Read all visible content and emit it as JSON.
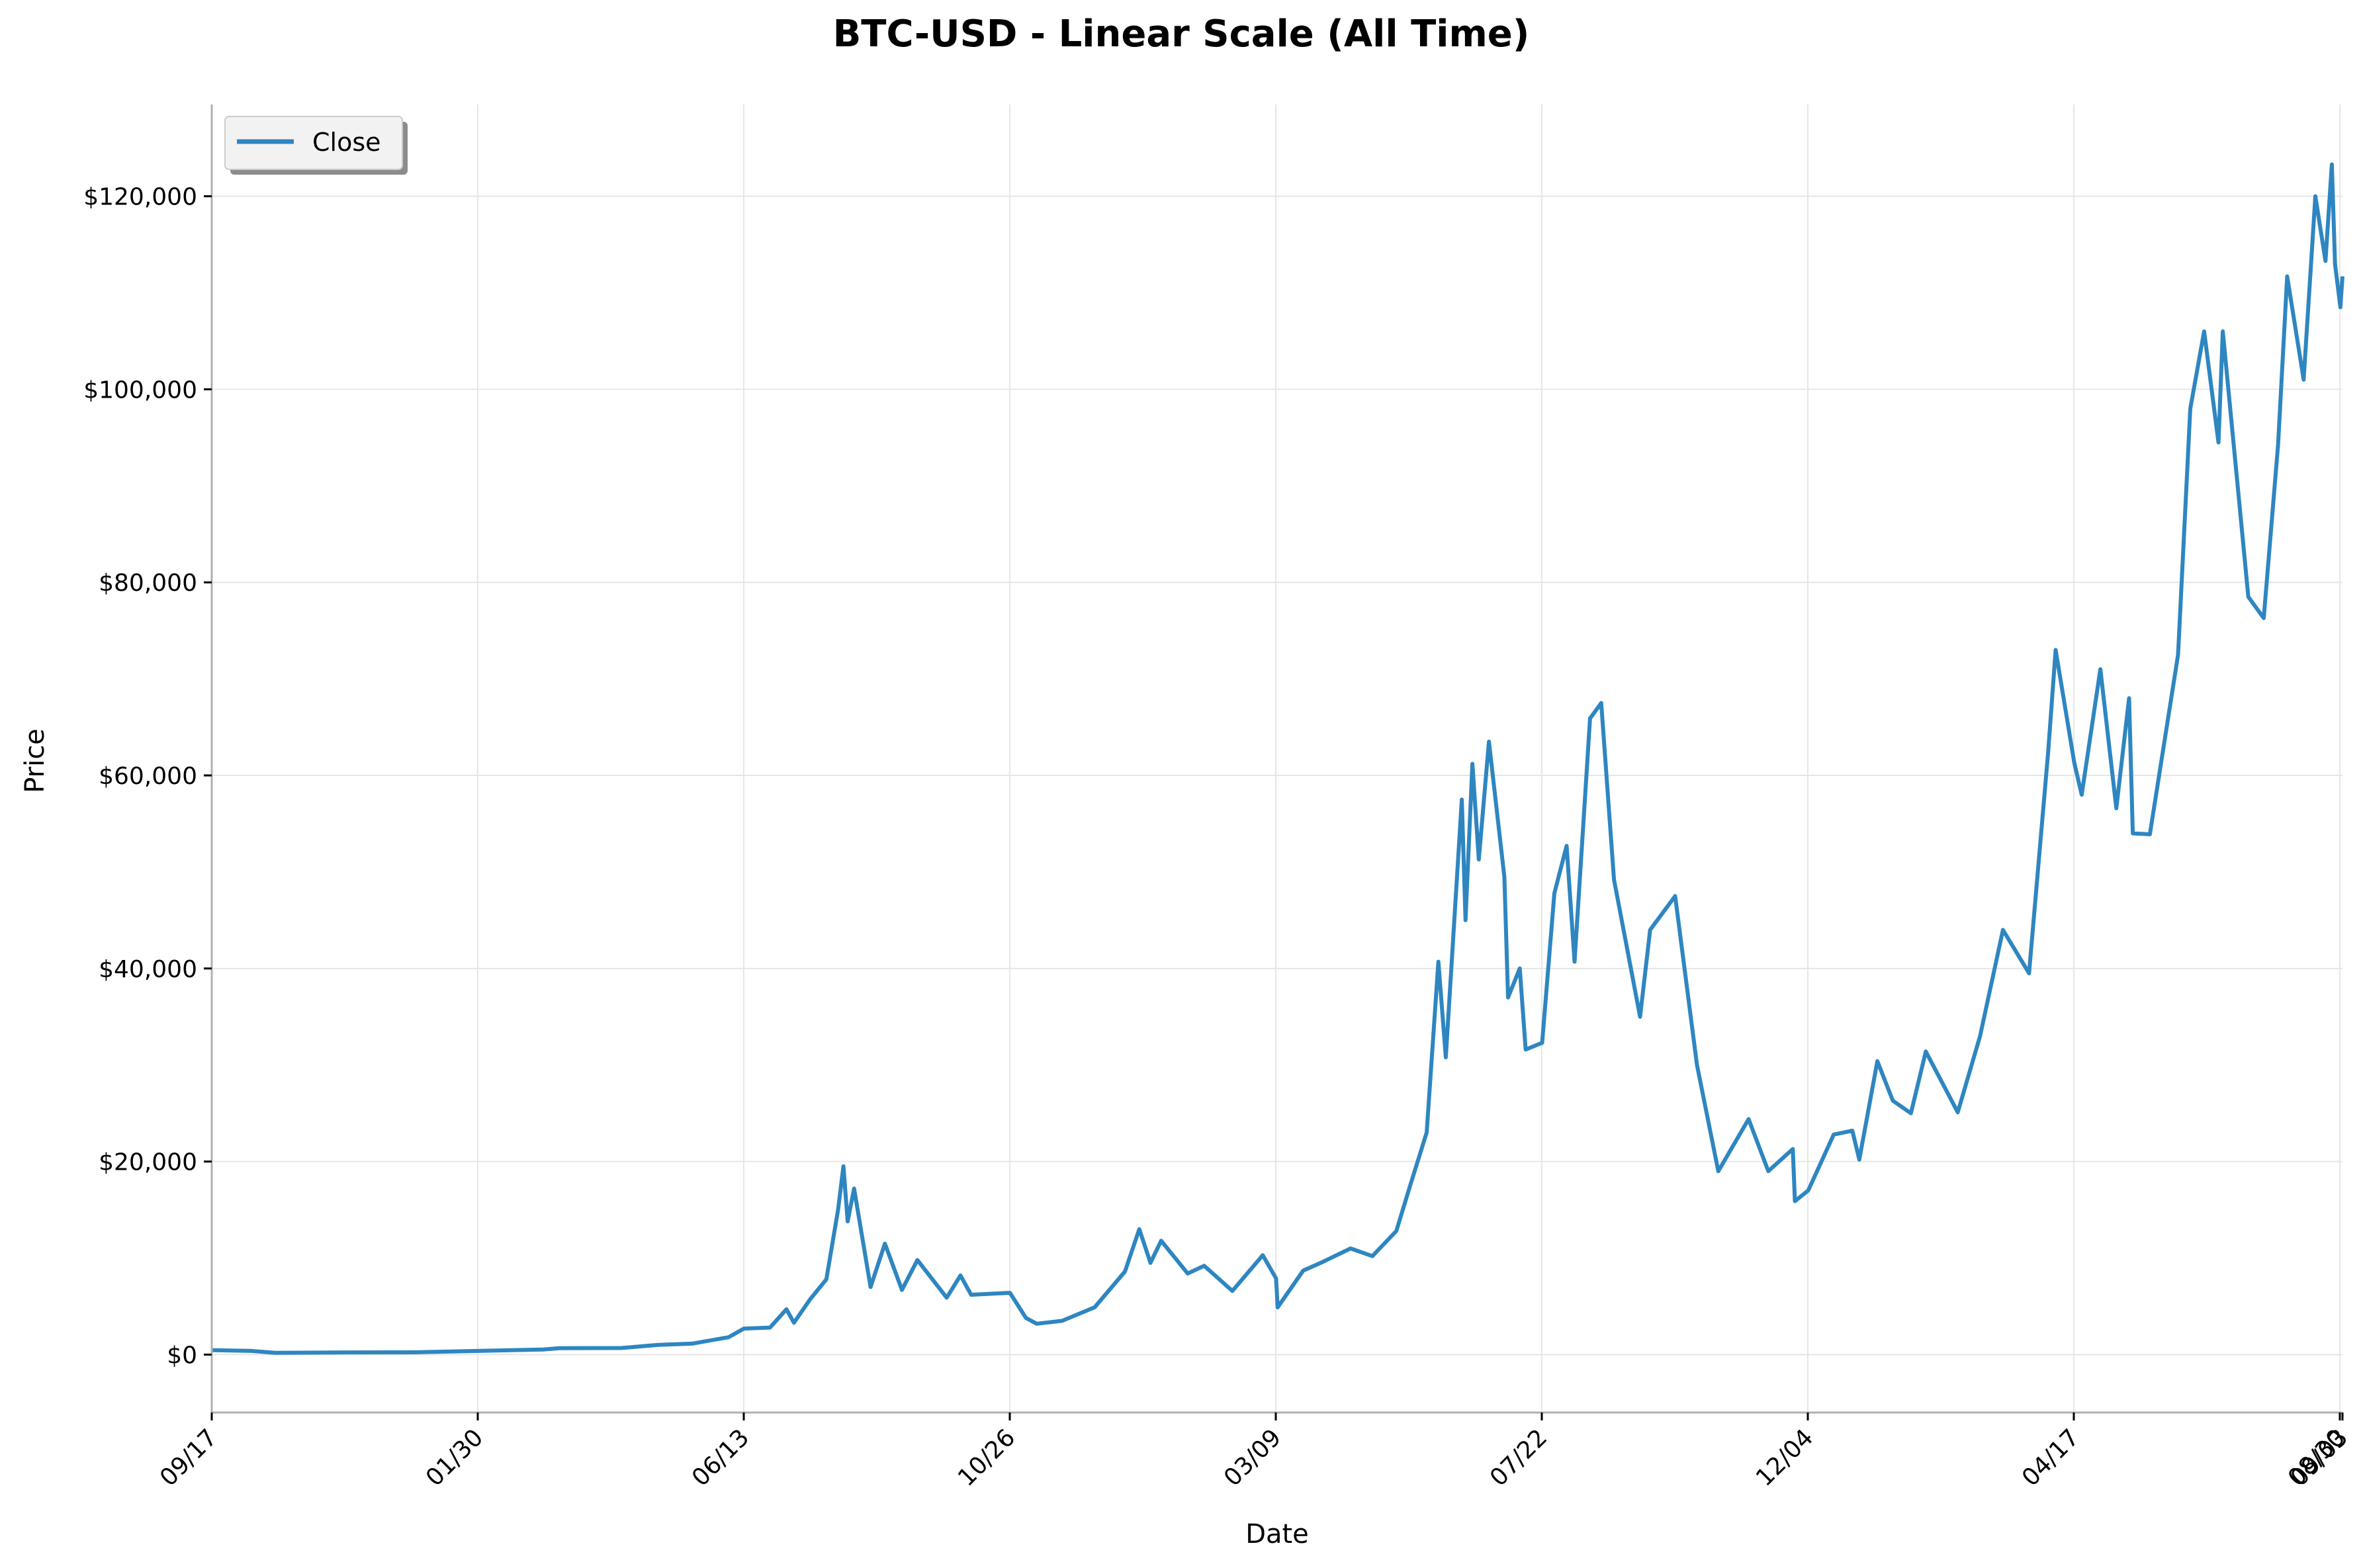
{
  "chart_data": {
    "type": "line",
    "title": "BTC-USD - Linear Scale (All Time)",
    "xlabel": "Date",
    "ylabel": "Price",
    "legend": {
      "position": "top-left",
      "entries": [
        "Close"
      ]
    },
    "grid": true,
    "x_ticks": [
      "09/17",
      "01/30",
      "06/13",
      "10/26",
      "03/09",
      "07/22",
      "12/04",
      "04/17",
      "08/30",
      "09/03"
    ],
    "x_range": [
      "2014-09-17",
      "2025-09-03"
    ],
    "y_ticks": [
      "$0",
      "$20,000",
      "$40,000",
      "$60,000",
      "$80,000",
      "$100,000",
      "$120,000"
    ],
    "y_tick_values": [
      0,
      20000,
      40000,
      60000,
      80000,
      100000,
      120000
    ],
    "ylim": [
      -6000,
      129500
    ],
    "series": [
      {
        "name": "Close",
        "color": "#2e86c1",
        "points": [
          [
            "2014-09-17",
            457
          ],
          [
            "2014-12-01",
            380
          ],
          [
            "2015-01-14",
            180
          ],
          [
            "2015-06-01",
            230
          ],
          [
            "2015-10-01",
            240
          ],
          [
            "2016-01-30",
            380
          ],
          [
            "2016-06-01",
            530
          ],
          [
            "2016-07-01",
            670
          ],
          [
            "2016-10-26",
            680
          ],
          [
            "2017-01-01",
            1000
          ],
          [
            "2017-03-09",
            1150
          ],
          [
            "2017-05-15",
            1800
          ],
          [
            "2017-06-13",
            2700
          ],
          [
            "2017-08-01",
            2800
          ],
          [
            "2017-09-01",
            4700
          ],
          [
            "2017-09-15",
            3300
          ],
          [
            "2017-10-15",
            5700
          ],
          [
            "2017-11-15",
            7800
          ],
          [
            "2017-12-07",
            15000
          ],
          [
            "2017-12-17",
            19500
          ],
          [
            "2017-12-25",
            13800
          ],
          [
            "2018-01-06",
            17200
          ],
          [
            "2018-02-06",
            7000
          ],
          [
            "2018-03-05",
            11500
          ],
          [
            "2018-04-06",
            6700
          ],
          [
            "2018-05-05",
            9800
          ],
          [
            "2018-06-29",
            5900
          ],
          [
            "2018-07-25",
            8200
          ],
          [
            "2018-08-14",
            6200
          ],
          [
            "2018-10-26",
            6400
          ],
          [
            "2018-11-25",
            3800
          ],
          [
            "2018-12-15",
            3200
          ],
          [
            "2019-02-01",
            3500
          ],
          [
            "2019-04-03",
            4900
          ],
          [
            "2019-05-30",
            8600
          ],
          [
            "2019-06-26",
            13000
          ],
          [
            "2019-07-17",
            9500
          ],
          [
            "2019-08-06",
            11800
          ],
          [
            "2019-09-25",
            8400
          ],
          [
            "2019-10-26",
            9200
          ],
          [
            "2019-12-18",
            6600
          ],
          [
            "2020-02-13",
            10300
          ],
          [
            "2020-03-09",
            7900
          ],
          [
            "2020-03-12",
            4900
          ],
          [
            "2020-04-29",
            8700
          ],
          [
            "2020-06-01",
            9500
          ],
          [
            "2020-07-27",
            11000
          ],
          [
            "2020-09-06",
            10200
          ],
          [
            "2020-10-21",
            12800
          ],
          [
            "2020-11-17",
            17700
          ],
          [
            "2020-12-17",
            23000
          ],
          [
            "2021-01-08",
            40700
          ],
          [
            "2021-01-22",
            30800
          ],
          [
            "2021-02-21",
            57500
          ],
          [
            "2021-02-28",
            45000
          ],
          [
            "2021-03-13",
            61200
          ],
          [
            "2021-03-25",
            51300
          ],
          [
            "2021-04-13",
            63500
          ],
          [
            "2021-05-12",
            49500
          ],
          [
            "2021-05-19",
            37000
          ],
          [
            "2021-06-10",
            40000
          ],
          [
            "2021-06-21",
            31600
          ],
          [
            "2021-07-22",
            32300
          ],
          [
            "2021-08-14",
            47800
          ],
          [
            "2021-09-06",
            52700
          ],
          [
            "2021-09-21",
            40700
          ],
          [
            "2021-10-20",
            65900
          ],
          [
            "2021-11-10",
            67500
          ],
          [
            "2021-12-04",
            49200
          ],
          [
            "2022-01-22",
            35000
          ],
          [
            "2022-02-10",
            44000
          ],
          [
            "2022-03-29",
            47500
          ],
          [
            "2022-05-09",
            30000
          ],
          [
            "2022-06-18",
            19000
          ],
          [
            "2022-08-14",
            24400
          ],
          [
            "2022-09-20",
            19000
          ],
          [
            "2022-11-05",
            21300
          ],
          [
            "2022-11-09",
            15900
          ],
          [
            "2022-12-04",
            17000
          ],
          [
            "2023-01-21",
            22800
          ],
          [
            "2023-02-25",
            23200
          ],
          [
            "2023-03-10",
            20200
          ],
          [
            "2023-04-13",
            30400
          ],
          [
            "2023-05-12",
            26300
          ],
          [
            "2023-06-15",
            25000
          ],
          [
            "2023-07-13",
            31400
          ],
          [
            "2023-09-11",
            25100
          ],
          [
            "2023-10-23",
            33000
          ],
          [
            "2023-12-05",
            44000
          ],
          [
            "2024-01-23",
            39500
          ],
          [
            "2024-02-28",
            62500
          ],
          [
            "2024-03-13",
            73000
          ],
          [
            "2024-04-17",
            61300
          ],
          [
            "2024-05-01",
            58000
          ],
          [
            "2024-06-05",
            71000
          ],
          [
            "2024-07-05",
            56600
          ],
          [
            "2024-07-29",
            68000
          ],
          [
            "2024-08-05",
            54000
          ],
          [
            "2024-09-06",
            53900
          ],
          [
            "2024-10-29",
            72500
          ],
          [
            "2024-11-21",
            98000
          ],
          [
            "2024-12-17",
            106000
          ],
          [
            "2025-01-13",
            94500
          ],
          [
            "2025-01-21",
            106000
          ],
          [
            "2025-02-25",
            86000
          ],
          [
            "2025-03-10",
            78500
          ],
          [
            "2025-04-08",
            76300
          ],
          [
            "2025-05-05",
            94300
          ],
          [
            "2025-05-22",
            111700
          ],
          [
            "2025-06-22",
            101000
          ],
          [
            "2025-07-14",
            120000
          ],
          [
            "2025-08-02",
            113300
          ],
          [
            "2025-08-14",
            123300
          ],
          [
            "2025-08-20",
            113000
          ],
          [
            "2025-08-30",
            108500
          ],
          [
            "2025-09-03",
            111700
          ]
        ]
      }
    ]
  }
}
